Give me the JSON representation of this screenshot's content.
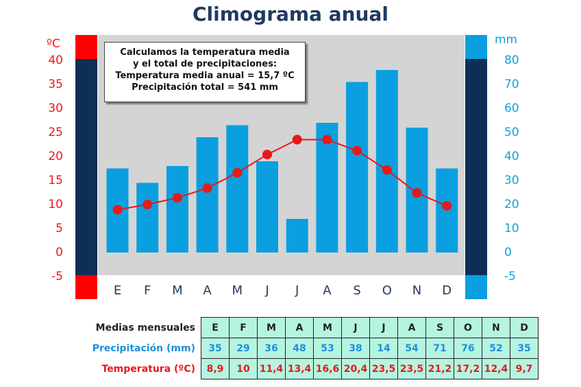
{
  "title": "Climograma anual",
  "chart_data": {
    "type": "bar",
    "title": "Climograma anual",
    "categories": [
      "E",
      "F",
      "M",
      "A",
      "M",
      "J",
      "J",
      "A",
      "S",
      "O",
      "N",
      "D"
    ],
    "left_axis": {
      "unit": "ºC",
      "ticks": [
        "40",
        "35",
        "30",
        "25",
        "20",
        "15",
        "10",
        "5",
        "0",
        "-5"
      ],
      "ylim": [
        -5,
        40
      ]
    },
    "right_axis": {
      "unit": "mm",
      "ticks": [
        "80",
        "70",
        "60",
        "50",
        "40",
        "30",
        "20",
        "10",
        "0",
        "-5"
      ],
      "ylim": [
        -10,
        80
      ]
    },
    "series": [
      {
        "type": "bar",
        "axis": "right",
        "color": "#0a9fe0",
        "values": [
          35,
          29,
          36,
          48,
          53,
          38,
          14,
          54,
          71,
          76,
          52,
          35
        ]
      },
      {
        "type": "line",
        "axis": "left",
        "color": "#e8181c",
        "values": [
          8.9,
          10,
          11.4,
          13.4,
          16.6,
          20.4,
          23.5,
          23.5,
          21.2,
          17.2,
          12.4,
          9.7
        ]
      }
    ],
    "annotation": {
      "lines": [
        "Calculamos la temperatura media",
        "y el total de precipitaciones:",
        "Temperatura media anual = 15,7 ºC",
        "Precipitación total = 541 mm"
      ]
    },
    "grid": false
  },
  "table": {
    "months_label": "Medias mensuales",
    "precip_label": "Precipitación (mm)",
    "temp_label": "Temperatura (ºC)",
    "months": [
      "E",
      "F",
      "M",
      "A",
      "M",
      "J",
      "J",
      "A",
      "S",
      "O",
      "N",
      "D"
    ],
    "precip": [
      "35",
      "29",
      "36",
      "48",
      "53",
      "38",
      "14",
      "54",
      "71",
      "76",
      "52",
      "35"
    ],
    "temp": [
      "8,9",
      "10",
      "11,4",
      "13,4",
      "16,6",
      "20,4",
      "23,5",
      "23,5",
      "21,2",
      "17,2",
      "12,4",
      "9,7"
    ]
  },
  "colors": {
    "plot_bg": "#d4d4d4",
    "side_band": "#0d2f57",
    "left_accent": "#ff0000",
    "right_accent": "#0a9fe0",
    "bar": "#0a9fe0",
    "line": "#e8181c",
    "table_cell": "#b5f5e0"
  }
}
